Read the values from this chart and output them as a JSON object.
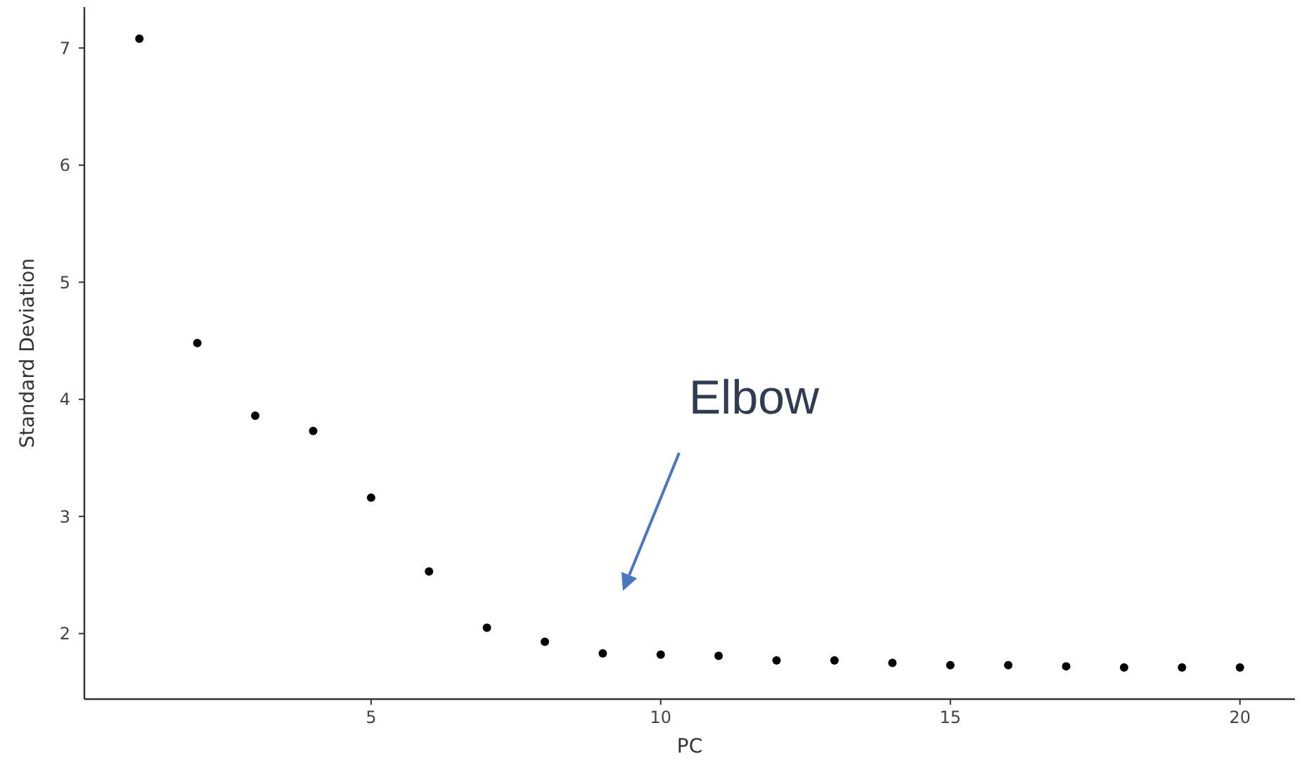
{
  "chart_data": {
    "type": "scatter",
    "xlabel": "PC",
    "ylabel": "Standard Deviation",
    "x": [
      1,
      2,
      3,
      4,
      5,
      6,
      7,
      8,
      9,
      10,
      11,
      12,
      13,
      14,
      15,
      16,
      17,
      18,
      19,
      20
    ],
    "values": [
      7.08,
      4.48,
      3.86,
      3.73,
      3.16,
      2.53,
      2.05,
      1.93,
      1.83,
      1.82,
      1.81,
      1.77,
      1.77,
      1.75,
      1.73,
      1.73,
      1.72,
      1.71,
      1.71,
      1.71
    ],
    "color": "#000000",
    "marker": "circle",
    "grid": false,
    "xlim": [
      0.05,
      20.95
    ],
    "xticks": [
      5,
      10,
      15,
      20
    ],
    "ylim": [
      1.44,
      7.35
    ],
    "yticks": [
      2,
      3,
      4,
      5,
      6,
      7
    ],
    "annotations": [
      "Elbow"
    ]
  }
}
